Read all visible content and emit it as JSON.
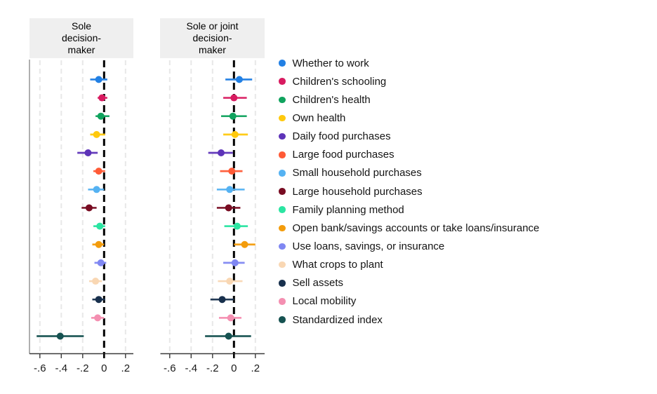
{
  "chart_data": {
    "type": "scatter",
    "subtype": "coefficient-plot-with-ci",
    "legend_position": "right",
    "grid": "vertical-dashed",
    "zero_line": true,
    "xlim": [
      -0.7,
      0.28
    ],
    "x_tick_values": [
      -0.6,
      -0.4,
      -0.2,
      0,
      0.2
    ],
    "x_tick_labels": [
      "-.6",
      "-.4",
      "-.2",
      "0",
      ".2"
    ],
    "categories": [
      "Whether to work",
      "Children's schooling",
      "Children's health",
      "Own health",
      "Daily food purchases",
      "Large food purchases",
      "Small household purchases",
      "Large household purchases",
      "Family planning method",
      "Open bank/savings accounts or take loans/insurance",
      "Use loans, savings, or insurance",
      "What crops to plant",
      "Sell assets",
      "Local mobility",
      "Standardized index"
    ],
    "colors": [
      "#2280E4",
      "#D81B60",
      "#10A35E",
      "#FFC90D",
      "#5D33B8",
      "#FF5A36",
      "#55B2F2",
      "#780C22",
      "#2BE5A2",
      "#F39C0C",
      "#7F87F2",
      "#F9D7B3",
      "#18304D",
      "#F48FB1",
      "#165251"
    ],
    "panels": [
      {
        "title": "Sole\ndecision-\nmaker",
        "estimates": [
          -0.05,
          -0.02,
          -0.03,
          -0.07,
          -0.15,
          -0.05,
          -0.07,
          -0.14,
          -0.04,
          -0.05,
          -0.03,
          -0.08,
          -0.05,
          -0.06,
          -0.41
        ],
        "ci_low": [
          -0.13,
          -0.06,
          -0.08,
          -0.13,
          -0.25,
          -0.1,
          -0.15,
          -0.21,
          -0.1,
          -0.11,
          -0.09,
          -0.14,
          -0.11,
          -0.12,
          -0.63
        ],
        "ci_high": [
          0.03,
          0.03,
          0.05,
          0.01,
          -0.06,
          0.01,
          0.0,
          -0.07,
          0.01,
          0.0,
          0.02,
          -0.02,
          0.01,
          0.0,
          -0.19
        ]
      },
      {
        "title": "Sole or joint\ndecision-\nmaker",
        "estimates": [
          0.05,
          0.0,
          -0.01,
          0.01,
          -0.12,
          -0.02,
          -0.04,
          -0.05,
          0.03,
          0.1,
          0.01,
          -0.04,
          -0.11,
          -0.03,
          -0.05
        ],
        "ci_low": [
          -0.08,
          -0.1,
          -0.12,
          -0.1,
          -0.24,
          -0.13,
          -0.16,
          -0.16,
          -0.09,
          0.0,
          -0.1,
          -0.15,
          -0.22,
          -0.14,
          -0.27
        ],
        "ci_high": [
          0.17,
          0.12,
          0.12,
          0.13,
          -0.01,
          0.08,
          0.1,
          0.06,
          0.13,
          0.2,
          0.1,
          0.08,
          0.0,
          0.07,
          0.16
        ]
      }
    ],
    "style_colors": {
      "header_bg": "#efefef",
      "gridline": "#e8e8e8",
      "zero_line": "#000000",
      "axis": "#3a3a3a",
      "y_axis": "#9b9b9b",
      "tick_label": "#1a1a1a"
    }
  }
}
